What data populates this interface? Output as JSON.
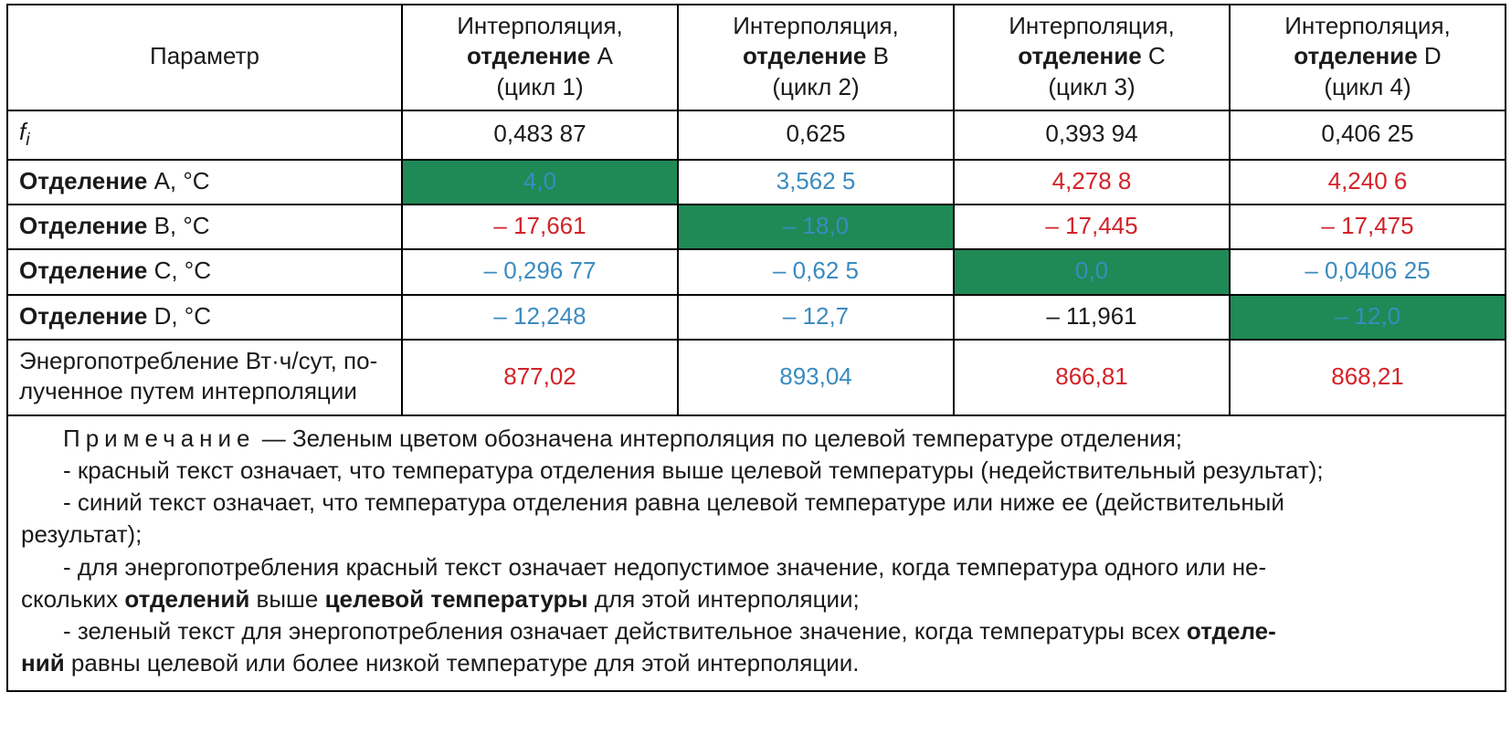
{
  "colors": {
    "border": "#000000",
    "text": "#1a1a1a",
    "green_bg": "#1f8a56",
    "red_text": "#d2232a",
    "blue_text": "#3b8bbf",
    "background": "#ffffff"
  },
  "typography": {
    "font_family": "Arial",
    "base_fontsize_pt": 20,
    "line_height": 1.28
  },
  "header": {
    "param": "Параметр",
    "col_prefix": "Интерполяция,",
    "col_bold": "отделение",
    "cols": [
      {
        "letter": "A",
        "cycle": "(цикл 1)"
      },
      {
        "letter": "B",
        "cycle": "(цикл 2)"
      },
      {
        "letter": "C",
        "cycle": "(цикл 3)"
      },
      {
        "letter": "D",
        "cycle": "(цикл 4)"
      }
    ]
  },
  "rows": {
    "fi": {
      "label_html": "f_i",
      "values": [
        "0,483 87",
        "0,625",
        "0,393 94",
        "0,406 25"
      ],
      "styles": [
        "black",
        "black",
        "black",
        "black"
      ],
      "green_idx": -1
    },
    "A": {
      "label_bold": "Отделение",
      "label_rest": " A, °C",
      "values": [
        "4,0",
        "3,562 5",
        "4,278 8",
        "4,240 6"
      ],
      "styles": [
        "blue",
        "blue",
        "red",
        "red"
      ],
      "green_idx": 0
    },
    "B": {
      "label_bold": "Отделение",
      "label_rest": " B, °C",
      "values": [
        "– 17,661",
        "– 18,0",
        "– 17,445",
        "– 17,475"
      ],
      "styles": [
        "red",
        "blue",
        "red",
        "red"
      ],
      "green_idx": 1
    },
    "C": {
      "label_bold": "Отделение",
      "label_rest": " C, °C",
      "values": [
        "– 0,296 77",
        "– 0,62 5",
        "0,0",
        "– 0,0406 25"
      ],
      "styles": [
        "blue",
        "blue",
        "blue",
        "blue"
      ],
      "green_idx": 2
    },
    "D": {
      "label_bold": "Отделение",
      "label_rest": " D, °C",
      "values": [
        "– 12,248",
        "– 12,7",
        "– 11,961",
        "– 12,0"
      ],
      "styles": [
        "blue",
        "blue",
        "black",
        "blue"
      ],
      "green_idx": 3
    },
    "energy": {
      "label_l1": "Энергопотребление Вт·ч/сут, по-",
      "label_l2": "лученное путем интерполяции",
      "values": [
        "877,02",
        "893,04",
        "866,81",
        "868,21"
      ],
      "styles": [
        "red",
        "blue",
        "red",
        "red"
      ],
      "green_idx": -1
    }
  },
  "note": {
    "lead_word": "Примечание",
    "p1_rest": " — Зеленым цветом обозначена интерполяция по целевой температуре отделения;",
    "p2": "- красный текст означает, что температура отделения выше целевой температуры (недействительный результат);",
    "p3a": "- синий текст означает, что температура отделения равна целевой температуре или ниже ее (действительный",
    "p3b": "результат);",
    "p4a_pre": "- для энергопотребления красный текст означает недопустимое значение, когда температура одного или не-",
    "p4b_pre": "скольких ",
    "p4b_b1": "отделений",
    "p4b_mid": " выше ",
    "p4b_b2": "целевой температуры",
    "p4b_post": " для этой интерполяции;",
    "p5a_pre": "- зеленый текст для энергопотребления означает действительное значение, когда температуры всех ",
    "p5a_b1": "отделе-",
    "p5b_b1": "ний",
    "p5b_post": " равны целевой или более низкой температуре для этой интерполяции."
  }
}
